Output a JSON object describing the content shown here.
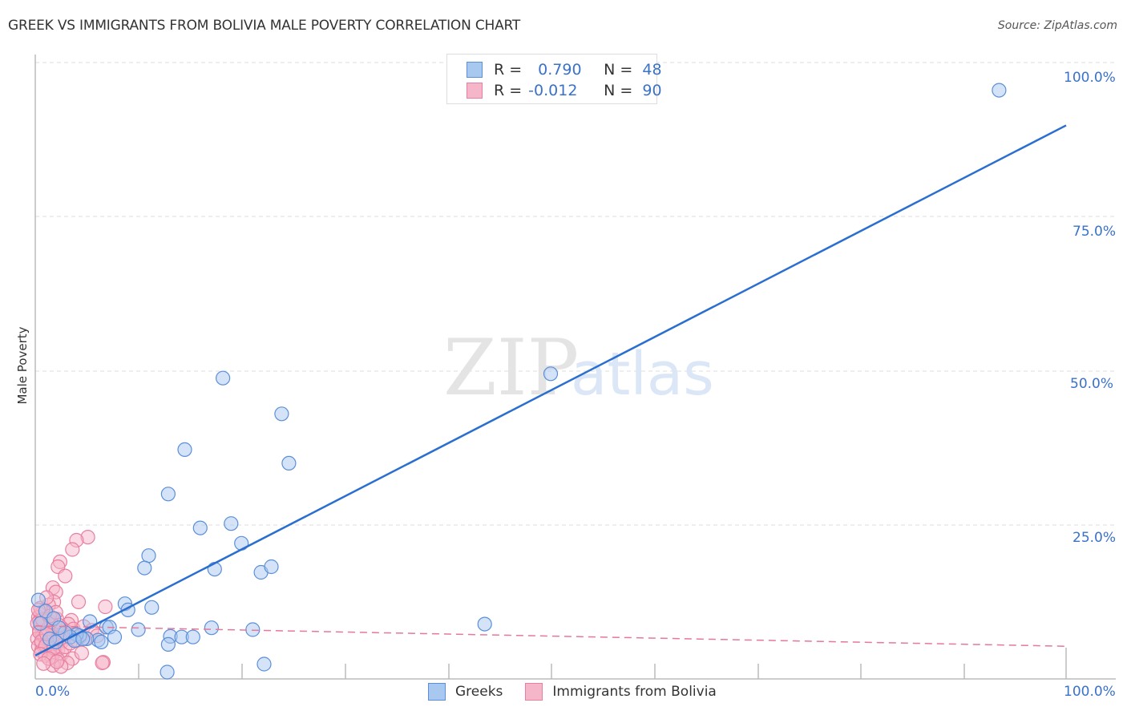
{
  "header": {
    "title": "GREEK VS IMMIGRANTS FROM BOLIVIA MALE POVERTY CORRELATION CHART",
    "source": "Source: ZipAtlas.com"
  },
  "watermark": {
    "zip": "ZIP",
    "atlas": "atlas"
  },
  "axes": {
    "ylabel": "Male Poverty",
    "x_tick_left": "0.0%",
    "x_tick_right": "100.0%",
    "y_ticks": [
      "100.0%",
      "75.0%",
      "50.0%",
      "25.0%"
    ]
  },
  "legend_top": {
    "rows": [
      {
        "r_label": "R =",
        "r_value": "0.790",
        "n_label": "N =",
        "n_value": "48"
      },
      {
        "r_label": "R =",
        "r_value": "-0.012",
        "n_label": "N =",
        "n_value": "90"
      }
    ]
  },
  "legend_bottom": {
    "items": [
      {
        "label": "Greeks"
      },
      {
        "label": "Immigrants from Bolivia"
      }
    ]
  },
  "colors": {
    "greeks_fill": "#a9c8f0",
    "greeks_stroke": "#5b8fd9",
    "greeks_line": "#2a6fd0",
    "bolivia_fill": "#f6b6c9",
    "bolivia_stroke": "#e87f9f",
    "bolivia_line": "#e6789a",
    "tick_text": "#3a72c8"
  },
  "chart_data": {
    "type": "scatter",
    "title": "GREEK VS IMMIGRANTS FROM BOLIVIA MALE POVERTY CORRELATION CHART",
    "xlabel": "",
    "ylabel": "Male Poverty",
    "xlim": [
      0,
      100
    ],
    "ylim": [
      0,
      100
    ],
    "x_ticks": [
      "0.0%",
      "100.0%"
    ],
    "y_ticks": [
      "25.0%",
      "50.0%",
      "75.0%",
      "100.0%"
    ],
    "grid": true,
    "legend_position": "bottom",
    "series": [
      {
        "name": "Greeks",
        "R": 0.79,
        "N": 48,
        "trendline": {
          "x": [
            0,
            100
          ],
          "y": [
            3.8,
            89.8
          ]
        },
        "points": [
          [
            93.5,
            95.5
          ],
          [
            50.0,
            49.5
          ],
          [
            18.2,
            48.8
          ],
          [
            23.9,
            43.0
          ],
          [
            24.6,
            35.0
          ],
          [
            14.5,
            37.2
          ],
          [
            12.9,
            30.0
          ],
          [
            16.0,
            24.5
          ],
          [
            19.0,
            25.2
          ],
          [
            20.0,
            22.0
          ],
          [
            11.0,
            20.0
          ],
          [
            10.6,
            18.0
          ],
          [
            17.4,
            17.8
          ],
          [
            21.9,
            17.3
          ],
          [
            22.9,
            18.2
          ],
          [
            8.7,
            12.2
          ],
          [
            9.0,
            11.2
          ],
          [
            11.3,
            11.6
          ],
          [
            5.3,
            9.3
          ],
          [
            6.9,
            8.4
          ],
          [
            7.2,
            8.4
          ],
          [
            10.0,
            8.0
          ],
          [
            13.1,
            6.9
          ],
          [
            14.2,
            6.8
          ],
          [
            15.3,
            6.8
          ],
          [
            17.1,
            8.3
          ],
          [
            21.1,
            8.0
          ],
          [
            43.6,
            8.9
          ],
          [
            6.1,
            6.3
          ],
          [
            6.4,
            6.0
          ],
          [
            5.0,
            6.5
          ],
          [
            7.7,
            6.8
          ],
          [
            4.3,
            7.0
          ],
          [
            12.9,
            5.6
          ],
          [
            22.2,
            2.4
          ],
          [
            12.8,
            1.1
          ],
          [
            4.0,
            7.2
          ],
          [
            3.4,
            6.8
          ],
          [
            2.9,
            7.5
          ],
          [
            0.3,
            12.8
          ],
          [
            1.0,
            11.0
          ],
          [
            1.8,
            9.8
          ],
          [
            2.3,
            8.3
          ],
          [
            3.8,
            6.2
          ],
          [
            4.6,
            6.5
          ],
          [
            0.5,
            9.0
          ],
          [
            1.4,
            6.5
          ],
          [
            2.0,
            6.0
          ]
        ]
      },
      {
        "name": "Immigrants from Bolivia",
        "R": -0.012,
        "N": 90,
        "trendline": {
          "x": [
            0,
            100
          ],
          "y": [
            8.6,
            5.3
          ]
        },
        "points": [
          [
            5.1,
            23.0
          ],
          [
            4.0,
            22.5
          ],
          [
            3.6,
            21.0
          ],
          [
            2.4,
            19.0
          ],
          [
            2.2,
            18.2
          ],
          [
            2.9,
            16.7
          ],
          [
            1.7,
            14.8
          ],
          [
            2.0,
            14.1
          ],
          [
            1.8,
            12.5
          ],
          [
            4.2,
            12.5
          ],
          [
            1.3,
            12.0
          ],
          [
            0.8,
            11.0
          ],
          [
            0.5,
            10.5
          ],
          [
            0.3,
            10.0
          ],
          [
            6.8,
            11.7
          ],
          [
            2.1,
            9.7
          ],
          [
            3.5,
            9.5
          ],
          [
            3.2,
            8.9
          ],
          [
            1.6,
            8.5
          ],
          [
            2.6,
            8.2
          ],
          [
            0.4,
            8.0
          ],
          [
            1.0,
            7.8
          ],
          [
            1.4,
            7.5
          ],
          [
            2.4,
            7.2
          ],
          [
            0.7,
            7.0
          ],
          [
            1.9,
            6.9
          ],
          [
            2.8,
            6.8
          ],
          [
            3.3,
            6.6
          ],
          [
            0.2,
            6.5
          ],
          [
            1.2,
            6.4
          ],
          [
            1.5,
            6.2
          ],
          [
            2.0,
            6.0
          ],
          [
            2.5,
            5.9
          ],
          [
            0.6,
            5.8
          ],
          [
            1.1,
            5.6
          ],
          [
            1.7,
            5.5
          ],
          [
            0.3,
            5.3
          ],
          [
            0.9,
            5.0
          ],
          [
            1.3,
            4.8
          ],
          [
            2.2,
            4.7
          ],
          [
            0.6,
            4.5
          ],
          [
            1.9,
            4.3
          ],
          [
            2.6,
            4.1
          ],
          [
            0.8,
            8.9
          ],
          [
            1.6,
            9.9
          ],
          [
            0.4,
            9.4
          ],
          [
            3.0,
            7.7
          ],
          [
            3.8,
            7.2
          ],
          [
            4.4,
            6.9
          ],
          [
            4.9,
            6.6
          ],
          [
            1.0,
            3.8
          ],
          [
            1.6,
            3.6
          ],
          [
            3.6,
            3.3
          ],
          [
            4.5,
            4.2
          ],
          [
            2.2,
            3.1
          ],
          [
            3.1,
            2.6
          ],
          [
            1.7,
            2.2
          ],
          [
            2.5,
            2.0
          ],
          [
            6.6,
            2.7
          ],
          [
            6.5,
            2.6
          ],
          [
            0.5,
            11.5
          ],
          [
            1.1,
            13.2
          ],
          [
            0.2,
            9.0
          ],
          [
            0.9,
            6.9
          ],
          [
            1.8,
            7.1
          ],
          [
            2.7,
            7.4
          ],
          [
            0.4,
            7.6
          ],
          [
            1.2,
            8.1
          ],
          [
            2.3,
            8.7
          ],
          [
            1.5,
            9.2
          ],
          [
            0.7,
            9.6
          ],
          [
            1.4,
            10.2
          ],
          [
            2.0,
            10.8
          ],
          [
            0.3,
            11.2
          ],
          [
            0.6,
            6.1
          ],
          [
            1.0,
            5.4
          ],
          [
            1.8,
            5.0
          ],
          [
            2.9,
            5.2
          ],
          [
            3.4,
            5.8
          ],
          [
            4.0,
            6.3
          ],
          [
            0.5,
            4.0
          ],
          [
            1.3,
            3.3
          ],
          [
            2.1,
            2.8
          ],
          [
            0.8,
            2.5
          ],
          [
            3.7,
            8.1
          ],
          [
            4.7,
            8.5
          ],
          [
            5.5,
            7.9
          ],
          [
            6.0,
            7.0
          ],
          [
            2.4,
            6.5
          ],
          [
            1.1,
            7.3
          ]
        ]
      }
    ]
  }
}
